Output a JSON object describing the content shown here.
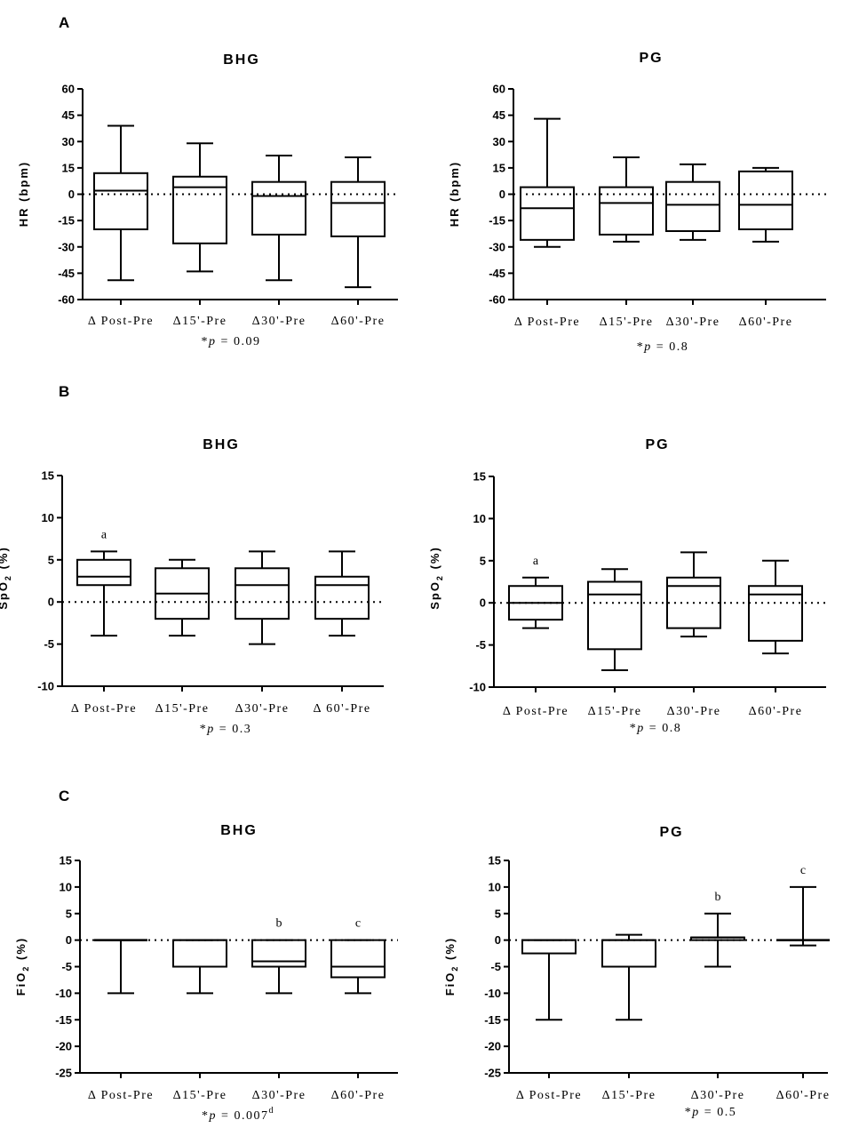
{
  "panels": [
    {
      "letter": "A"
    },
    {
      "letter": "B"
    },
    {
      "letter": "C"
    }
  ],
  "chart_data": [
    {
      "type": "boxplot",
      "panel": "A",
      "title": "BHG",
      "ylabel": "HR (bpm)",
      "ylim": [
        -60,
        60
      ],
      "yticks": [
        "60",
        "45",
        "30",
        "15",
        "0",
        "-15",
        "-30",
        "-45",
        "-60"
      ],
      "categories": [
        "Δ Post-Pre",
        "Δ15'-Pre",
        "Δ30'-Pre",
        "Δ60'-Pre"
      ],
      "boxes": [
        {
          "min": -49,
          "q1": -20,
          "median": 2,
          "q3": 12,
          "max": 39
        },
        {
          "min": -44,
          "q1": -28,
          "median": 4,
          "q3": 10,
          "max": 29
        },
        {
          "min": -49,
          "q1": -23,
          "median": -1,
          "q3": 7,
          "max": 22
        },
        {
          "min": -53,
          "q1": -24,
          "median": -5,
          "q3": 7,
          "max": 21
        }
      ],
      "annotations": [
        "",
        "",
        "",
        ""
      ],
      "p_value": "*p = 0.09",
      "reference_line": 0
    },
    {
      "type": "boxplot",
      "panel": "A",
      "title": "PG",
      "ylabel": "HR (bpm)",
      "ylim": [
        -60,
        60
      ],
      "yticks": [
        "60",
        "45",
        "30",
        "15",
        "0",
        "-15",
        "-30",
        "-45",
        "-60"
      ],
      "categories": [
        "Δ Post-Pre",
        "Δ15'-Pre",
        "Δ30'-Pre",
        "Δ60'-Pre"
      ],
      "boxes": [
        {
          "min": -30,
          "q1": -26,
          "median": -8,
          "q3": 4,
          "max": 43
        },
        {
          "min": -27,
          "q1": -23,
          "median": -5,
          "q3": 4,
          "max": 21
        },
        {
          "min": -26,
          "q1": -21,
          "median": -6,
          "q3": 7,
          "max": 17
        },
        {
          "min": -27,
          "q1": -20,
          "median": -6,
          "q3": 13,
          "max": 15
        }
      ],
      "annotations": [
        "",
        "",
        "",
        ""
      ],
      "p_value": "*p = 0.8",
      "reference_line": 0
    },
    {
      "type": "boxplot",
      "panel": "B",
      "title": "BHG",
      "ylabel": "SpO2 (%)",
      "ylim": [
        -10,
        15
      ],
      "yticks": [
        "15",
        "10",
        "5",
        "0",
        "-5",
        "-10"
      ],
      "categories": [
        "Δ Post-Pre",
        "Δ15'-Pre",
        "Δ30'-Pre",
        "Δ 60'-Pre"
      ],
      "boxes": [
        {
          "min": -4,
          "q1": 2,
          "median": 3,
          "q3": 5,
          "max": 6
        },
        {
          "min": -4,
          "q1": -2,
          "median": 1,
          "q3": 4,
          "max": 5
        },
        {
          "min": -5,
          "q1": -2,
          "median": 2,
          "q3": 4,
          "max": 6
        },
        {
          "min": -4,
          "q1": -2,
          "median": 2,
          "q3": 3,
          "max": 6
        }
      ],
      "annotations": [
        "a",
        "",
        "",
        ""
      ],
      "p_value": "*p = 0.3",
      "reference_line": 0
    },
    {
      "type": "boxplot",
      "panel": "B",
      "title": "PG",
      "ylabel": "SpO2 (%)",
      "ylim": [
        -10,
        15
      ],
      "yticks": [
        "15",
        "10",
        "5",
        "0",
        "-5",
        "-10"
      ],
      "categories": [
        "Δ Post-Pre",
        "Δ15'-Pre",
        "Δ30'-Pre",
        "Δ60'-Pre"
      ],
      "boxes": [
        {
          "min": -3,
          "q1": -2,
          "median": 0,
          "q3": 2,
          "max": 3
        },
        {
          "min": -8,
          "q1": -5.5,
          "median": 1,
          "q3": 2.5,
          "max": 4
        },
        {
          "min": -4,
          "q1": -3,
          "median": 2,
          "q3": 3,
          "max": 6
        },
        {
          "min": -6,
          "q1": -4.5,
          "median": 1,
          "q3": 2,
          "max": 5
        }
      ],
      "annotations": [
        "a",
        "",
        "",
        ""
      ],
      "p_value": "*p = 0.8",
      "reference_line": 0
    },
    {
      "type": "boxplot",
      "panel": "C",
      "title": "BHG",
      "ylabel": "FiO2 (%)",
      "ylim": [
        -25,
        15
      ],
      "yticks": [
        "15",
        "10",
        "5",
        "0",
        "-5",
        "-10",
        "-15",
        "-20",
        "-25"
      ],
      "categories": [
        "Δ Post-Pre",
        "Δ15'-Pre",
        "Δ30'-Pre",
        "Δ60'-Pre"
      ],
      "boxes": [
        {
          "min": -10,
          "q1": 0,
          "median": 0,
          "q3": 0,
          "max": 0
        },
        {
          "min": -10,
          "q1": -5,
          "median": 0,
          "q3": 0,
          "max": 0
        },
        {
          "min": -10,
          "q1": -5,
          "median": -4,
          "q3": 0,
          "max": 0
        },
        {
          "min": -10,
          "q1": -7,
          "median": -5,
          "q3": 0,
          "max": 0
        }
      ],
      "annotations": [
        "",
        "",
        "b",
        "c"
      ],
      "p_value": "*p = 0.007",
      "p_value_sup": "d",
      "reference_line": 0
    },
    {
      "type": "boxplot",
      "panel": "C",
      "title": "PG",
      "ylabel": "FiO2 (%)",
      "ylim": [
        -25,
        15
      ],
      "yticks": [
        "15",
        "10",
        "5",
        "0",
        "-5",
        "-10",
        "-15",
        "-20",
        "-25"
      ],
      "categories": [
        "Δ Post-Pre",
        "Δ15'-Pre",
        "Δ30'-Pre",
        "Δ60'-Pre"
      ],
      "boxes": [
        {
          "min": -15,
          "q1": -2.5,
          "median": 0,
          "q3": 0,
          "max": 0
        },
        {
          "min": -15,
          "q1": -5,
          "median": 0,
          "q3": 0,
          "max": 1
        },
        {
          "min": -5,
          "q1": 0,
          "median": 0.5,
          "q3": 0.5,
          "max": 5
        },
        {
          "min": -1,
          "q1": 0,
          "median": 0,
          "q3": 0,
          "max": 10
        }
      ],
      "annotations": [
        "",
        "",
        "b",
        "c"
      ],
      "p_value": "*p = 0.5",
      "reference_line": 0
    }
  ]
}
